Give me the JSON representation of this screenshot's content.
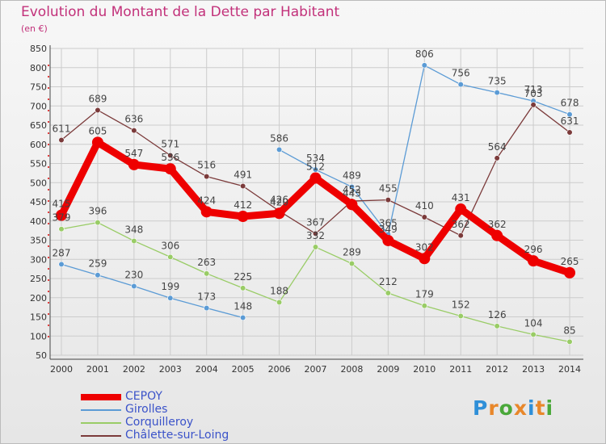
{
  "title": "Evolution du Montant de la Dette par Habitant",
  "unit_label": "(en €)",
  "logo_text": "Proxiti",
  "colors": {
    "title": "#c2317a",
    "axis_text": "#333333",
    "grid": "#cccccc",
    "legend_text": "#3b53c9"
  },
  "chart_data": {
    "type": "line",
    "x": [
      "2000",
      "2001",
      "2002",
      "2003",
      "2004",
      "2005",
      "2006",
      "2007",
      "2008",
      "2009",
      "2010",
      "2011",
      "2012",
      "2013",
      "2014"
    ],
    "ylim": [
      50,
      850
    ],
    "yticks": [
      50,
      100,
      150,
      200,
      250,
      300,
      350,
      400,
      450,
      500,
      550,
      600,
      650,
      700,
      750,
      800,
      850
    ],
    "grid": true,
    "legend_position": "bottom-left",
    "series": [
      {
        "name": "CEPOY",
        "color": "#ee0000",
        "thick": true,
        "values": [
          415,
          605,
          547,
          536,
          424,
          412,
          420,
          512,
          443,
          349,
          302,
          431,
          362,
          296,
          265
        ],
        "labels": [
          "415",
          "605",
          "547",
          "536",
          "424",
          "412",
          "420",
          "512",
          "443",
          "349",
          "302",
          "431",
          "362",
          "296",
          "265"
        ]
      },
      {
        "name": "Girolles",
        "color": "#5b9bd5",
        "thick": false,
        "segments": [
          [
            0,
            5
          ],
          [
            6,
            14
          ]
        ],
        "values": [
          287,
          259,
          230,
          199,
          173,
          148,
          586,
          534,
          489,
          365,
          806,
          756,
          735,
          713,
          678
        ],
        "labels": [
          "287",
          "259",
          "230",
          "199",
          "173",
          "148",
          "586",
          "534",
          "489",
          "365",
          "806",
          "756",
          "735",
          "713",
          "678"
        ]
      },
      {
        "name": "Corquilleroy",
        "color": "#99cc66",
        "thick": false,
        "values": [
          379,
          396,
          348,
          306,
          263,
          225,
          188,
          332,
          289,
          212,
          179,
          152,
          126,
          104,
          85
        ],
        "labels": [
          "379",
          "396",
          "348",
          "306",
          "263",
          "225",
          "188",
          "332",
          "289",
          "212",
          "179",
          "152",
          "126",
          "104",
          "85"
        ]
      },
      {
        "name": "Châlette-sur-Loing",
        "color": "#7b3a3a",
        "thick": false,
        "values": [
          611,
          689,
          636,
          571,
          516,
          491,
          426,
          367,
          452,
          455,
          410,
          362,
          564,
          703,
          631
        ],
        "labels": [
          "611",
          "689",
          "636",
          "571",
          "516",
          "491",
          "426",
          "367",
          "452",
          "455",
          "410",
          "362",
          "564",
          "703",
          "631"
        ]
      }
    ]
  }
}
